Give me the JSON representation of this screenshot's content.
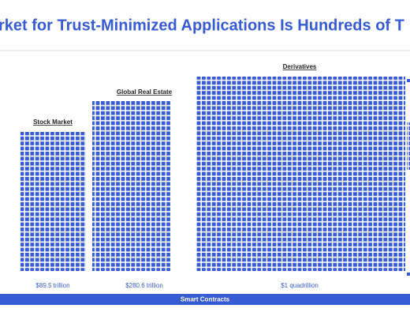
{
  "header": {
    "title": "rket for Trust-Minimized Applications Is Hundreds of T"
  },
  "blocks": [
    {
      "label": "Stock Market",
      "value_label": "$89.5 trillion"
    },
    {
      "label": "Global Real Estate",
      "value_label": "$280.6 trillion"
    },
    {
      "label": "Derivatives",
      "value_label": "$1 quadrillion"
    }
  ],
  "footer": {
    "label": "Smart Contracts"
  }
}
